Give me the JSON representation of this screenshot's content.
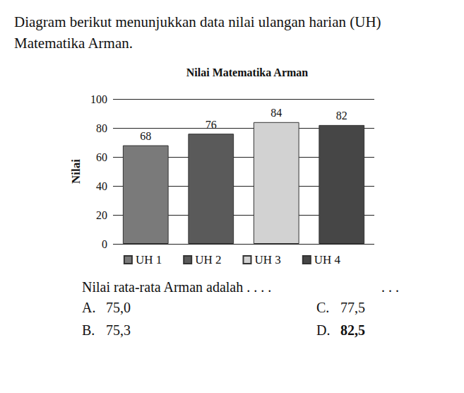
{
  "intro": "Diagram berikut menunjukkan data nilai ulangan harian (UH) Matematika Arman.",
  "chart_data": {
    "type": "bar",
    "title": "Nilai Matematika Arman",
    "y_label": "Nilai",
    "categories": [
      "UH 1",
      "UH 2",
      "UH 3",
      "UH 4"
    ],
    "values": [
      68,
      76,
      84,
      82
    ],
    "colors": [
      "#7a7a7a",
      "#5a5a5a",
      "#d2d2d2",
      "#464646"
    ],
    "ylim": [
      0,
      100
    ],
    "yticks": [
      0,
      20,
      40,
      60,
      80,
      100
    ],
    "grid": true,
    "data_labels": true,
    "legend": "bottom",
    "tick_labels": "y"
  },
  "question": "Nilai rata-rata Arman adalah . . . .",
  "question_end": ". . .",
  "options": [
    {
      "letter": "A.",
      "text": "75,0"
    },
    {
      "letter": "B.",
      "text": "75,3"
    },
    {
      "letter": "C.",
      "text": "77,5"
    },
    {
      "letter": "D.",
      "text": "82,5",
      "bold": true
    }
  ]
}
